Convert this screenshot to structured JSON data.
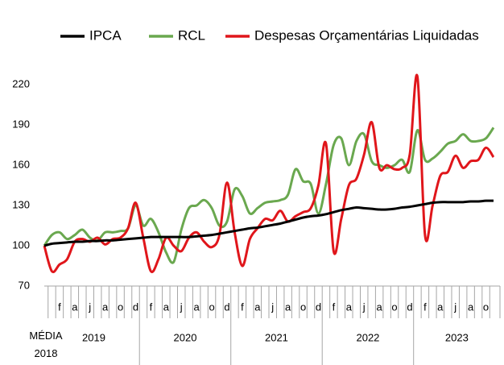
{
  "chart_data": {
    "type": "line",
    "categories": [
      "MÉDIA 2018",
      null,
      "f",
      null,
      "a",
      null,
      "j",
      null,
      "a",
      null,
      "o",
      null,
      "d",
      null,
      "f",
      null,
      "a",
      null,
      "j",
      null,
      "a",
      null,
      "o",
      null,
      "d",
      null,
      "f",
      null,
      "a",
      null,
      "j",
      null,
      "a",
      null,
      "o",
      null,
      "d",
      null,
      "f",
      null,
      "a",
      null,
      "j",
      null,
      "a",
      null,
      "o",
      null,
      "d",
      null,
      "f",
      null,
      "a",
      null,
      "j",
      null,
      "a",
      null,
      "o",
      null
    ],
    "years": [
      "2019",
      "2020",
      "2021",
      "2022",
      "2023"
    ],
    "series": [
      {
        "name": "IPCA",
        "color": "#000000",
        "values": [
          100,
          101.5,
          102,
          102.5,
          103,
          103,
          103.5,
          103.5,
          104,
          104,
          104.5,
          105,
          105.5,
          106,
          106.5,
          106.5,
          106.5,
          106.5,
          106.5,
          106.5,
          107,
          107.5,
          108,
          109,
          110,
          111,
          112,
          113,
          113.5,
          114.5,
          115.5,
          116.5,
          118,
          119.5,
          121,
          122,
          122.5,
          123.5,
          125,
          126.5,
          127.5,
          128.5,
          128,
          127.5,
          127,
          127,
          127.5,
          128.5,
          129,
          130,
          131,
          132,
          132.5,
          132.5,
          132.5,
          132.5,
          133,
          133,
          133.5,
          133.5
        ]
      },
      {
        "name": "RCL",
        "color": "#6aa84f",
        "values": [
          100,
          108,
          110,
          105,
          108,
          112,
          106,
          104,
          110,
          110,
          111,
          113,
          130,
          115,
          120,
          110,
          95,
          88,
          112,
          128,
          130,
          134,
          128,
          115,
          118,
          142,
          137,
          124,
          128,
          132,
          133,
          134,
          138,
          157,
          148,
          146,
          124,
          146,
          175,
          180,
          160,
          178,
          183,
          163,
          160,
          158,
          160,
          164,
          155,
          186,
          164,
          165,
          170,
          176,
          178,
          183,
          178,
          178,
          180,
          188
        ]
      },
      {
        "name": "Despesas Orçamentárias Liquidadas",
        "color": "#e0161b",
        "values": [
          100,
          81,
          86,
          90,
          103,
          105,
          103,
          106,
          101,
          105,
          106,
          113,
          132,
          106,
          81,
          90,
          106,
          100,
          96,
          106,
          110,
          103,
          99,
          108,
          147,
          110,
          85,
          105,
          113,
          120,
          119,
          126,
          118,
          122,
          125,
          128,
          145,
          176,
          96,
          120,
          145,
          150,
          168,
          192,
          158,
          160,
          157,
          158,
          168,
          226,
          108,
          130,
          152,
          155,
          167,
          158,
          163,
          164,
          173,
          166
        ]
      }
    ],
    "ylim": [
      70,
      235
    ],
    "yticks": [
      70,
      100,
      130,
      160,
      190,
      220
    ],
    "grid": false,
    "legend": "top"
  }
}
